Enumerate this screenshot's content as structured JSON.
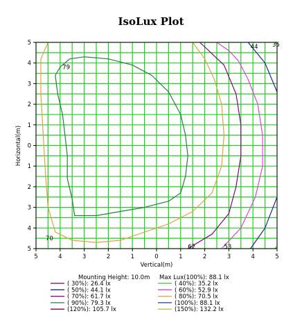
{
  "chart_data": {
    "type": "contour",
    "title": "IsoLux Plot",
    "xlabel": "Vertical(m)",
    "ylabel": "Horizontal(m)",
    "xlim": [
      -5,
      5
    ],
    "ylim": [
      -5,
      5
    ],
    "x_ticks": [
      -5,
      -4,
      -3,
      -2,
      -1,
      0,
      1,
      2,
      3,
      4,
      5
    ],
    "x_tick_labels": [
      "5",
      "4",
      "3",
      "2",
      "1",
      "0",
      "1",
      "2",
      "3",
      "4",
      "5"
    ],
    "y_ticks": [
      5,
      4,
      3,
      2,
      1,
      0,
      -1,
      -2,
      -3,
      -4,
      -5
    ],
    "y_tick_labels": [
      "5",
      "4",
      "3",
      "2",
      "1",
      "0",
      "1",
      "2",
      "3",
      "4",
      "5"
    ],
    "grid": true,
    "grid_color": "#22cc22",
    "mounting_height_text": "Mounting Height: 10.0m",
    "max_lux_text": "Max Lux(100%): 88.1 lx",
    "legend": [
      {
        "label": "( 30%):  26.4 lx",
        "color": "#800040"
      },
      {
        "label": "( 40%):  35.2 lx",
        "color": "#40c040"
      },
      {
        "label": "( 50%):  44.1 lx",
        "color": "#2020a0"
      },
      {
        "label": "( 60%):  52.9 lx",
        "color": "#e040e0"
      },
      {
        "label": "( 70%):  61.7 lx",
        "color": "#800080"
      },
      {
        "label": "( 80%):  70.5 lx",
        "color": "#e0a040"
      },
      {
        "label": "( 90%):  79.3 lx",
        "color": "#208040"
      },
      {
        "label": "(100%):  88.1 lx",
        "color": "#1e3ca0"
      },
      {
        "label": "(120%): 105.7 lx",
        "color": "#800040"
      },
      {
        "label": "(150%): 132.2 lx",
        "color": "#c0c040"
      }
    ],
    "contours": [
      {
        "level_label": "79",
        "color": "#208040",
        "points": [
          [
            -4.0,
            3.8
          ],
          [
            -3.6,
            4.2
          ],
          [
            -3.0,
            4.3
          ],
          [
            -2.0,
            4.2
          ],
          [
            -1.0,
            3.9
          ],
          [
            -0.2,
            3.4
          ],
          [
            0.5,
            2.6
          ],
          [
            1.0,
            1.5
          ],
          [
            1.2,
            0.5
          ],
          [
            1.3,
            -0.5
          ],
          [
            1.2,
            -1.5
          ],
          [
            1.0,
            -2.3
          ],
          [
            0.5,
            -2.7
          ],
          [
            -0.5,
            -3.0
          ],
          [
            -1.5,
            -3.2
          ],
          [
            -2.5,
            -3.4
          ],
          [
            -3.4,
            -3.4
          ],
          [
            -3.5,
            -2.6
          ],
          [
            -3.7,
            -1.6
          ],
          [
            -3.7,
            -0.5
          ],
          [
            -3.8,
            0.5
          ],
          [
            -3.9,
            1.5
          ],
          [
            -4.1,
            2.5
          ],
          [
            -4.2,
            3.4
          ],
          [
            -4.0,
            3.8
          ]
        ]
      },
      {
        "level_label": "70",
        "color": "#e0a040",
        "points": [
          [
            -4.5,
            5.0
          ],
          [
            -4.8,
            4.2
          ],
          [
            -4.8,
            2.5
          ],
          [
            -4.7,
            0.5
          ],
          [
            -4.6,
            -1.5
          ],
          [
            -4.5,
            -3.0
          ],
          [
            -4.2,
            -4.2
          ],
          [
            -3.5,
            -4.6
          ],
          [
            -2.5,
            -4.7
          ],
          [
            -1.5,
            -4.6
          ],
          [
            -0.5,
            -4.2
          ],
          [
            0.5,
            -3.8
          ],
          [
            1.5,
            -3.2
          ],
          [
            2.3,
            -2.3
          ],
          [
            2.7,
            -1.0
          ],
          [
            2.8,
            0.5
          ],
          [
            2.7,
            2.0
          ],
          [
            2.4,
            3.2
          ],
          [
            2.0,
            4.2
          ],
          [
            1.5,
            5.0
          ]
        ]
      },
      {
        "level_label": "62",
        "color": "#800080",
        "points": [
          [
            1.3,
            -5.0
          ],
          [
            2.3,
            -4.3
          ],
          [
            3.0,
            -3.3
          ],
          [
            3.3,
            -2.0
          ],
          [
            3.5,
            -0.5
          ],
          [
            3.5,
            1.0
          ],
          [
            3.3,
            2.5
          ],
          [
            2.8,
            3.9
          ],
          [
            1.8,
            5.0
          ]
        ]
      },
      {
        "level_label": "53",
        "color": "#e040e0",
        "points": [
          [
            2.7,
            -5.0
          ],
          [
            3.5,
            -4.0
          ],
          [
            4.1,
            -2.5
          ],
          [
            4.4,
            -1.0
          ],
          [
            4.4,
            0.5
          ],
          [
            4.2,
            2.0
          ],
          [
            3.8,
            3.2
          ],
          [
            3.4,
            4.1
          ],
          [
            3.0,
            4.6
          ],
          [
            2.5,
            5.0
          ]
        ]
      },
      {
        "level_label": "44",
        "color": "#2020a0",
        "points": [
          [
            3.9,
            -5.0
          ],
          [
            4.5,
            -4.0
          ],
          [
            5.0,
            -2.5
          ]
        ]
      },
      {
        "level_label": "44",
        "color": "#2020a0",
        "points": [
          [
            3.8,
            5.0
          ],
          [
            4.5,
            4.0
          ],
          [
            5.0,
            2.6
          ]
        ]
      },
      {
        "level_label": "35",
        "color": "#40c040",
        "points": [
          [
            4.9,
            5.0
          ],
          [
            5.0,
            4.9
          ]
        ]
      },
      {
        "level_label": "",
        "color": "#40c040",
        "points": [
          [
            4.9,
            -5.0
          ],
          [
            5.0,
            -4.9
          ]
        ]
      }
    ],
    "contour_labels": [
      {
        "text": "79",
        "x": -3.9,
        "y": 3.8,
        "color": "#208040"
      },
      {
        "text": "70",
        "x": -4.6,
        "y": -4.5,
        "color": "#e0a040"
      },
      {
        "text": "62",
        "x": 1.3,
        "y": -4.9,
        "color": "#800080"
      },
      {
        "text": "53",
        "x": 2.8,
        "y": -4.9,
        "color": "#e040e0"
      },
      {
        "text": "44",
        "x": 3.9,
        "y": 4.8,
        "color": "#2020a0"
      },
      {
        "text": "35",
        "x": 4.8,
        "y": 4.9,
        "color": "#40c040"
      }
    ]
  }
}
